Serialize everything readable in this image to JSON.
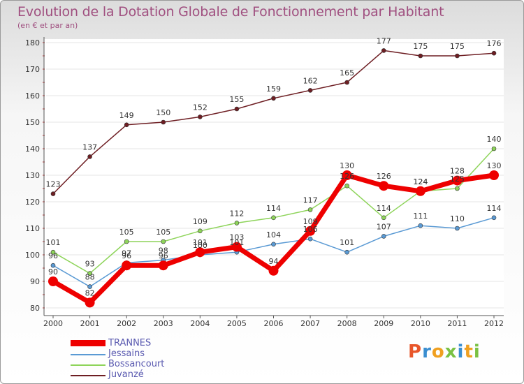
{
  "chart_data": {
    "type": "line",
    "title": "Evolution de la Dotation Globale de Fonctionnement par Habitant",
    "subtitle": "(en € et par an)",
    "xlabel": "",
    "ylabel": "",
    "categories": [
      "2000",
      "2001",
      "2002",
      "2003",
      "2004",
      "2005",
      "2006",
      "2007",
      "2008",
      "2009",
      "2010",
      "2011",
      "2012"
    ],
    "ylim": [
      80,
      180
    ],
    "yticks": [
      80,
      90,
      100,
      110,
      120,
      130,
      140,
      150,
      160,
      170,
      180
    ],
    "legend_position": "bottom-left",
    "series": [
      {
        "name": "Juvanzé",
        "color": "#6e1e23",
        "values": [
          123,
          137,
          149,
          150,
          152,
          155,
          159,
          162,
          165,
          177,
          175,
          175,
          176
        ]
      },
      {
        "name": "Bossancourt",
        "color": "#8ed45a",
        "values": [
          101,
          93,
          105,
          105,
          109,
          112,
          114,
          117,
          126,
          114,
          124,
          125,
          140
        ]
      },
      {
        "name": "Jessains",
        "color": "#5a9ad4",
        "values": [
          96,
          88,
          97,
          98,
          100,
          101,
          104,
          106,
          101,
          107,
          111,
          110,
          114
        ]
      },
      {
        "name": "TRANNES",
        "color": "#ee0000",
        "values": [
          90,
          82,
          96,
          96,
          101,
          103,
          94,
          109,
          130,
          126,
          124,
          128,
          130
        ]
      }
    ],
    "data_labels": {
      "Juvanzé": [
        "123",
        "137",
        "149",
        "150",
        "152",
        "155",
        "159",
        "162",
        "165",
        "177",
        "175",
        "175",
        "176"
      ],
      "Bossancourt": [
        "101",
        "93",
        "105",
        "105",
        "109",
        "112",
        "114",
        "117",
        "126",
        "114",
        "124",
        "125",
        "140"
      ],
      "Jessains": [
        "96",
        "88",
        "97",
        "98",
        "100",
        "101",
        "104",
        "106",
        "101",
        "107",
        "111",
        "110",
        "114"
      ],
      "TRANNES": [
        "90",
        "82",
        "96",
        "96",
        "101",
        "103",
        "94",
        "109",
        "130",
        "126",
        "124",
        "128",
        "130"
      ]
    }
  },
  "legend": {
    "items": [
      {
        "label": "TRANNES",
        "color": "#ee0000"
      },
      {
        "label": "Jessains",
        "color": "#5a9ad4"
      },
      {
        "label": "Bossancourt",
        "color": "#8ed45a"
      },
      {
        "label": "Juvanzé",
        "color": "#6e1e23"
      }
    ]
  },
  "logo": {
    "text": "Proxiti",
    "letter_colors": [
      "#e8562a",
      "#3a8ed0",
      "#f0a020",
      "#7ac143",
      "#3a8ed0",
      "#f0a020",
      "#7ac143"
    ]
  }
}
